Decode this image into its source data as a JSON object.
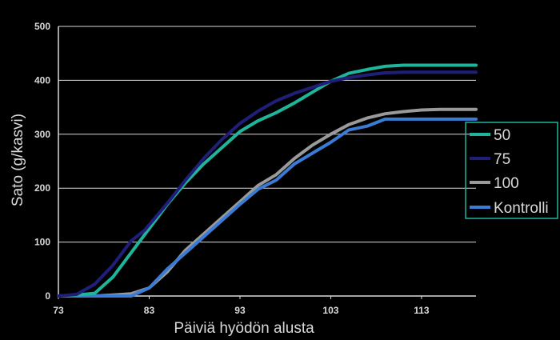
{
  "chart_data": {
    "type": "line",
    "title": "",
    "xlabel": "Päiviä hyödön alusta",
    "ylabel": "Sato (g/kasvi)",
    "xlim": [
      73,
      119
    ],
    "ylim": [
      0,
      500
    ],
    "xticks": [
      "73",
      "83",
      "93",
      "103",
      "113"
    ],
    "yticks": [
      "0",
      "100",
      "200",
      "300",
      "400",
      "500"
    ],
    "grid": "horizontal",
    "legend_position": "right",
    "series": [
      {
        "name": "50",
        "color": "#1fb59a",
        "x": [
          73,
          75,
          77,
          79,
          81,
          83,
          85,
          87,
          89,
          91,
          93,
          95,
          97,
          99,
          101,
          103,
          105,
          107,
          109,
          111,
          113,
          115,
          117,
          119
        ],
        "y": [
          0,
          2,
          5,
          35,
          80,
          125,
          170,
          210,
          245,
          275,
          305,
          325,
          340,
          358,
          378,
          398,
          413,
          420,
          426,
          428,
          428,
          428,
          428,
          428
        ]
      },
      {
        "name": "75",
        "color": "#1f1f7a",
        "x": [
          73,
          75,
          77,
          79,
          81,
          82.5,
          85,
          87,
          89,
          91,
          93,
          95,
          97,
          99,
          101,
          103,
          105,
          107,
          109,
          111,
          113,
          115,
          117,
          119
        ],
        "y": [
          0,
          3,
          22,
          57,
          102,
          122,
          172,
          215,
          255,
          290,
          320,
          343,
          362,
          376,
          387,
          398,
          405,
          410,
          414,
          415,
          415,
          415,
          415,
          415
        ]
      },
      {
        "name": "100",
        "color": "#9a9a9a",
        "x": [
          73,
          75,
          77,
          79,
          81,
          83,
          85,
          87,
          89,
          91,
          93,
          95,
          97,
          99,
          101,
          103,
          105,
          107,
          109,
          111,
          113,
          115,
          117,
          119
        ],
        "y": [
          0,
          0,
          0,
          2,
          4,
          15,
          45,
          85,
          115,
          145,
          175,
          205,
          225,
          255,
          280,
          300,
          318,
          330,
          338,
          342,
          345,
          346,
          346,
          346
        ]
      },
      {
        "name": "Kontrolli",
        "color": "#3a7bd5",
        "x": [
          73,
          75,
          77,
          79,
          81,
          83,
          85,
          87,
          89,
          91,
          93,
          95,
          97,
          99,
          101,
          103,
          105,
          107,
          109,
          111,
          113,
          115,
          117,
          119
        ],
        "y": [
          0,
          0,
          0,
          0,
          0,
          15,
          50,
          80,
          110,
          140,
          170,
          198,
          215,
          245,
          265,
          285,
          308,
          315,
          328,
          328,
          328,
          328,
          328,
          328
        ]
      }
    ]
  }
}
